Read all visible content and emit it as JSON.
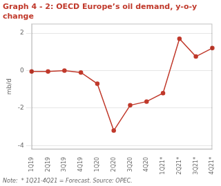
{
  "chart_data": {
    "type": "line",
    "title": [
      "Graph 4 - 2: OECD Europe’s oil demand, y-o-y",
      "change"
    ],
    "y_label": "mb/d",
    "annotations": [
      "Note:  * 1Q21-4Q21 = Forecast. Source: OPEC."
    ],
    "categories": [
      "1Q19",
      "2Q19",
      "3Q19",
      "4Q19",
      "1Q20",
      "2Q20",
      "3Q20",
      "4Q20",
      "1Q21*",
      "2Q21*",
      "3Q21*",
      "4Q21*"
    ],
    "values": [
      -0.05,
      -0.05,
      0.0,
      -0.1,
      -0.7,
      -3.2,
      -1.85,
      -1.65,
      -1.2,
      1.7,
      0.75,
      1.2
    ],
    "color": "#c0392b",
    "marker": "circle",
    "ylim": [
      -4.2,
      2.5
    ],
    "yticks": [
      -4,
      -2,
      0,
      2
    ],
    "grid": true
  }
}
